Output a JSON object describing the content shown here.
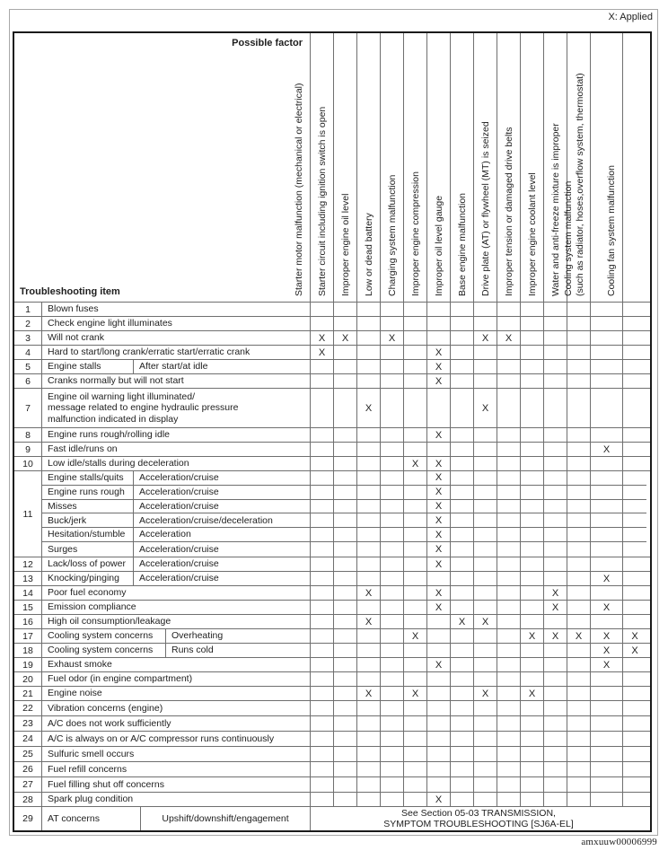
{
  "table": {
    "legend": "X: Applied",
    "possible_factor_label": "Possible factor",
    "troubleshooting_item_label": "Troubleshooting item",
    "mark": "X",
    "watermark": "amxuuw00006999",
    "factors": [
      "Starter motor malfunction (mechanical or electrical)",
      "Starter circuit including ignition switch is open",
      "Improper engine oil level",
      "Low or dead battery",
      "Charging system malfunction",
      "Improper engine compression",
      "Improper oil level gauge",
      "Base engine malfunction",
      "Drive plate (AT) or flywheel (MT) is seized",
      "Improper tension or damaged drive belts",
      "Improper engine coolant level",
      "Water and anti-freeze mixture is improper",
      "Cooling system malfunction\n(such as radiator, hoses,overflow system, thermostat)",
      "Cooling fan system malfunction"
    ],
    "rows": [
      {
        "no": "1",
        "cells": [
          [
            "Blown fuses",
            "full"
          ]
        ],
        "marks": []
      },
      {
        "no": "2",
        "cells": [
          [
            "Check engine light illuminates",
            "full"
          ]
        ],
        "marks": []
      },
      {
        "no": "3",
        "cells": [
          [
            "Will not crank",
            "full"
          ]
        ],
        "marks": [
          1,
          2,
          4,
          8,
          9
        ]
      },
      {
        "no": "4",
        "cells": [
          [
            "Hard to start/long crank/erratic start/erratic crank",
            "full"
          ]
        ],
        "marks": [
          1,
          6
        ]
      },
      {
        "no": "5",
        "cells": [
          [
            "Engine stalls",
            "s1"
          ],
          [
            "After start/at idle",
            "s2"
          ]
        ],
        "marks": [
          6
        ]
      },
      {
        "no": "6",
        "cells": [
          [
            "Cranks normally but will not start",
            "full"
          ]
        ],
        "marks": [
          6
        ]
      },
      {
        "no": "7",
        "h": "t",
        "cells": [
          [
            "Engine oil warning light illuminated/\nmessage related to engine hydraulic pressure\nmalfunction indicated in display",
            "full"
          ]
        ],
        "marks": [
          3,
          8
        ]
      },
      {
        "no": "8",
        "cells": [
          [
            "Engine runs rough/rolling idle",
            "full"
          ]
        ],
        "marks": [
          6
        ]
      },
      {
        "no": "9",
        "cells": [
          [
            "Fast idle/runs on",
            "full"
          ]
        ],
        "marks": [
          13
        ]
      },
      {
        "no": "10",
        "cells": [
          [
            "Low idle/stalls during deceleration",
            "full"
          ]
        ],
        "marks": [
          5,
          6
        ]
      },
      {
        "no": "11",
        "group": [
          {
            "cells": [
              [
                "Engine stalls/quits",
                "s1"
              ],
              [
                "Acceleration/cruise",
                "s2"
              ]
            ],
            "marks": [
              6
            ]
          },
          {
            "cells": [
              [
                "Engine runs rough",
                "s1"
              ],
              [
                "Acceleration/cruise",
                "s2"
              ]
            ],
            "marks": [
              6
            ]
          },
          {
            "cells": [
              [
                "Misses",
                "s1"
              ],
              [
                "Acceleration/cruise",
                "s2"
              ]
            ],
            "marks": [
              6
            ]
          },
          {
            "cells": [
              [
                "Buck/jerk",
                "s1"
              ],
              [
                "Acceleration/cruise/deceleration",
                "s2"
              ]
            ],
            "marks": [
              6
            ]
          },
          {
            "cells": [
              [
                "Hesitation/stumble",
                "s1"
              ],
              [
                "Acceleration",
                "s2"
              ]
            ],
            "marks": [
              6
            ]
          },
          {
            "cells": [
              [
                "Surges",
                "s1"
              ],
              [
                "Acceleration/cruise",
                "s2"
              ]
            ],
            "marks": [
              6
            ]
          }
        ]
      },
      {
        "no": "12",
        "cells": [
          [
            "Lack/loss of power",
            "s1"
          ],
          [
            "Acceleration/cruise",
            "s2"
          ]
        ],
        "marks": [
          6
        ]
      },
      {
        "no": "13",
        "cells": [
          [
            "Knocking/pinging",
            "s1"
          ],
          [
            "Acceleration/cruise",
            "s2"
          ]
        ],
        "marks": [
          13
        ]
      },
      {
        "no": "14",
        "cells": [
          [
            "Poor fuel economy",
            "full"
          ]
        ],
        "marks": [
          3,
          6,
          11
        ]
      },
      {
        "no": "15",
        "cells": [
          [
            "Emission compliance",
            "full"
          ]
        ],
        "marks": [
          6,
          11,
          13
        ]
      },
      {
        "no": "16",
        "cells": [
          [
            "High oil consumption/leakage",
            "full"
          ]
        ],
        "marks": [
          3,
          7,
          8
        ]
      },
      {
        "no": "17",
        "cells": [
          [
            "Cooling system concerns",
            "c1"
          ],
          [
            "Overheating",
            "c2"
          ]
        ],
        "marks": [
          5,
          10,
          11,
          12,
          13,
          14
        ]
      },
      {
        "no": "18",
        "cells": [
          [
            "Cooling system concerns",
            "c1"
          ],
          [
            "Runs cold",
            "c2"
          ]
        ],
        "marks": [
          13,
          14
        ]
      },
      {
        "no": "19",
        "cells": [
          [
            "Exhaust smoke",
            "full"
          ]
        ],
        "marks": [
          6,
          13
        ]
      },
      {
        "no": "20",
        "cells": [
          [
            "Fuel odor (in engine compartment)",
            "full"
          ]
        ],
        "marks": []
      },
      {
        "no": "21",
        "cells": [
          [
            "Engine noise",
            "full"
          ]
        ],
        "marks": [
          3,
          5,
          8,
          10
        ]
      },
      {
        "no": "22",
        "h": "m",
        "cells": [
          [
            "Vibration concerns (engine)",
            "full"
          ]
        ],
        "marks": []
      },
      {
        "no": "23",
        "h": "m",
        "cells": [
          [
            "A/C does not work sufficiently",
            "full"
          ]
        ],
        "marks": []
      },
      {
        "no": "24",
        "h": "m",
        "cells": [
          [
            "A/C is always on or A/C compressor runs continuously",
            "full"
          ]
        ],
        "marks": []
      },
      {
        "no": "25",
        "h": "m",
        "cells": [
          [
            "Sulfuric smell occurs",
            "full"
          ]
        ],
        "marks": []
      },
      {
        "no": "26",
        "h": "m",
        "cells": [
          [
            "Fuel refill concerns",
            "full"
          ]
        ],
        "marks": []
      },
      {
        "no": "27",
        "h": "m",
        "cells": [
          [
            "Fuel filling shut off concerns",
            "full"
          ]
        ],
        "marks": []
      },
      {
        "no": "28",
        "cells": [
          [
            "Spark plug condition",
            "full"
          ]
        ],
        "marks": [
          6
        ]
      },
      {
        "no": "29",
        "h": "note",
        "cells": [
          [
            "AT concerns",
            "n1"
          ],
          [
            "Upshift/downshift/engagement",
            "n2"
          ]
        ],
        "note": "See Section 05-03 TRANSMISSION,\nSYMPTOM TROUBLESHOOTING [SJ6A-EL]"
      }
    ]
  }
}
